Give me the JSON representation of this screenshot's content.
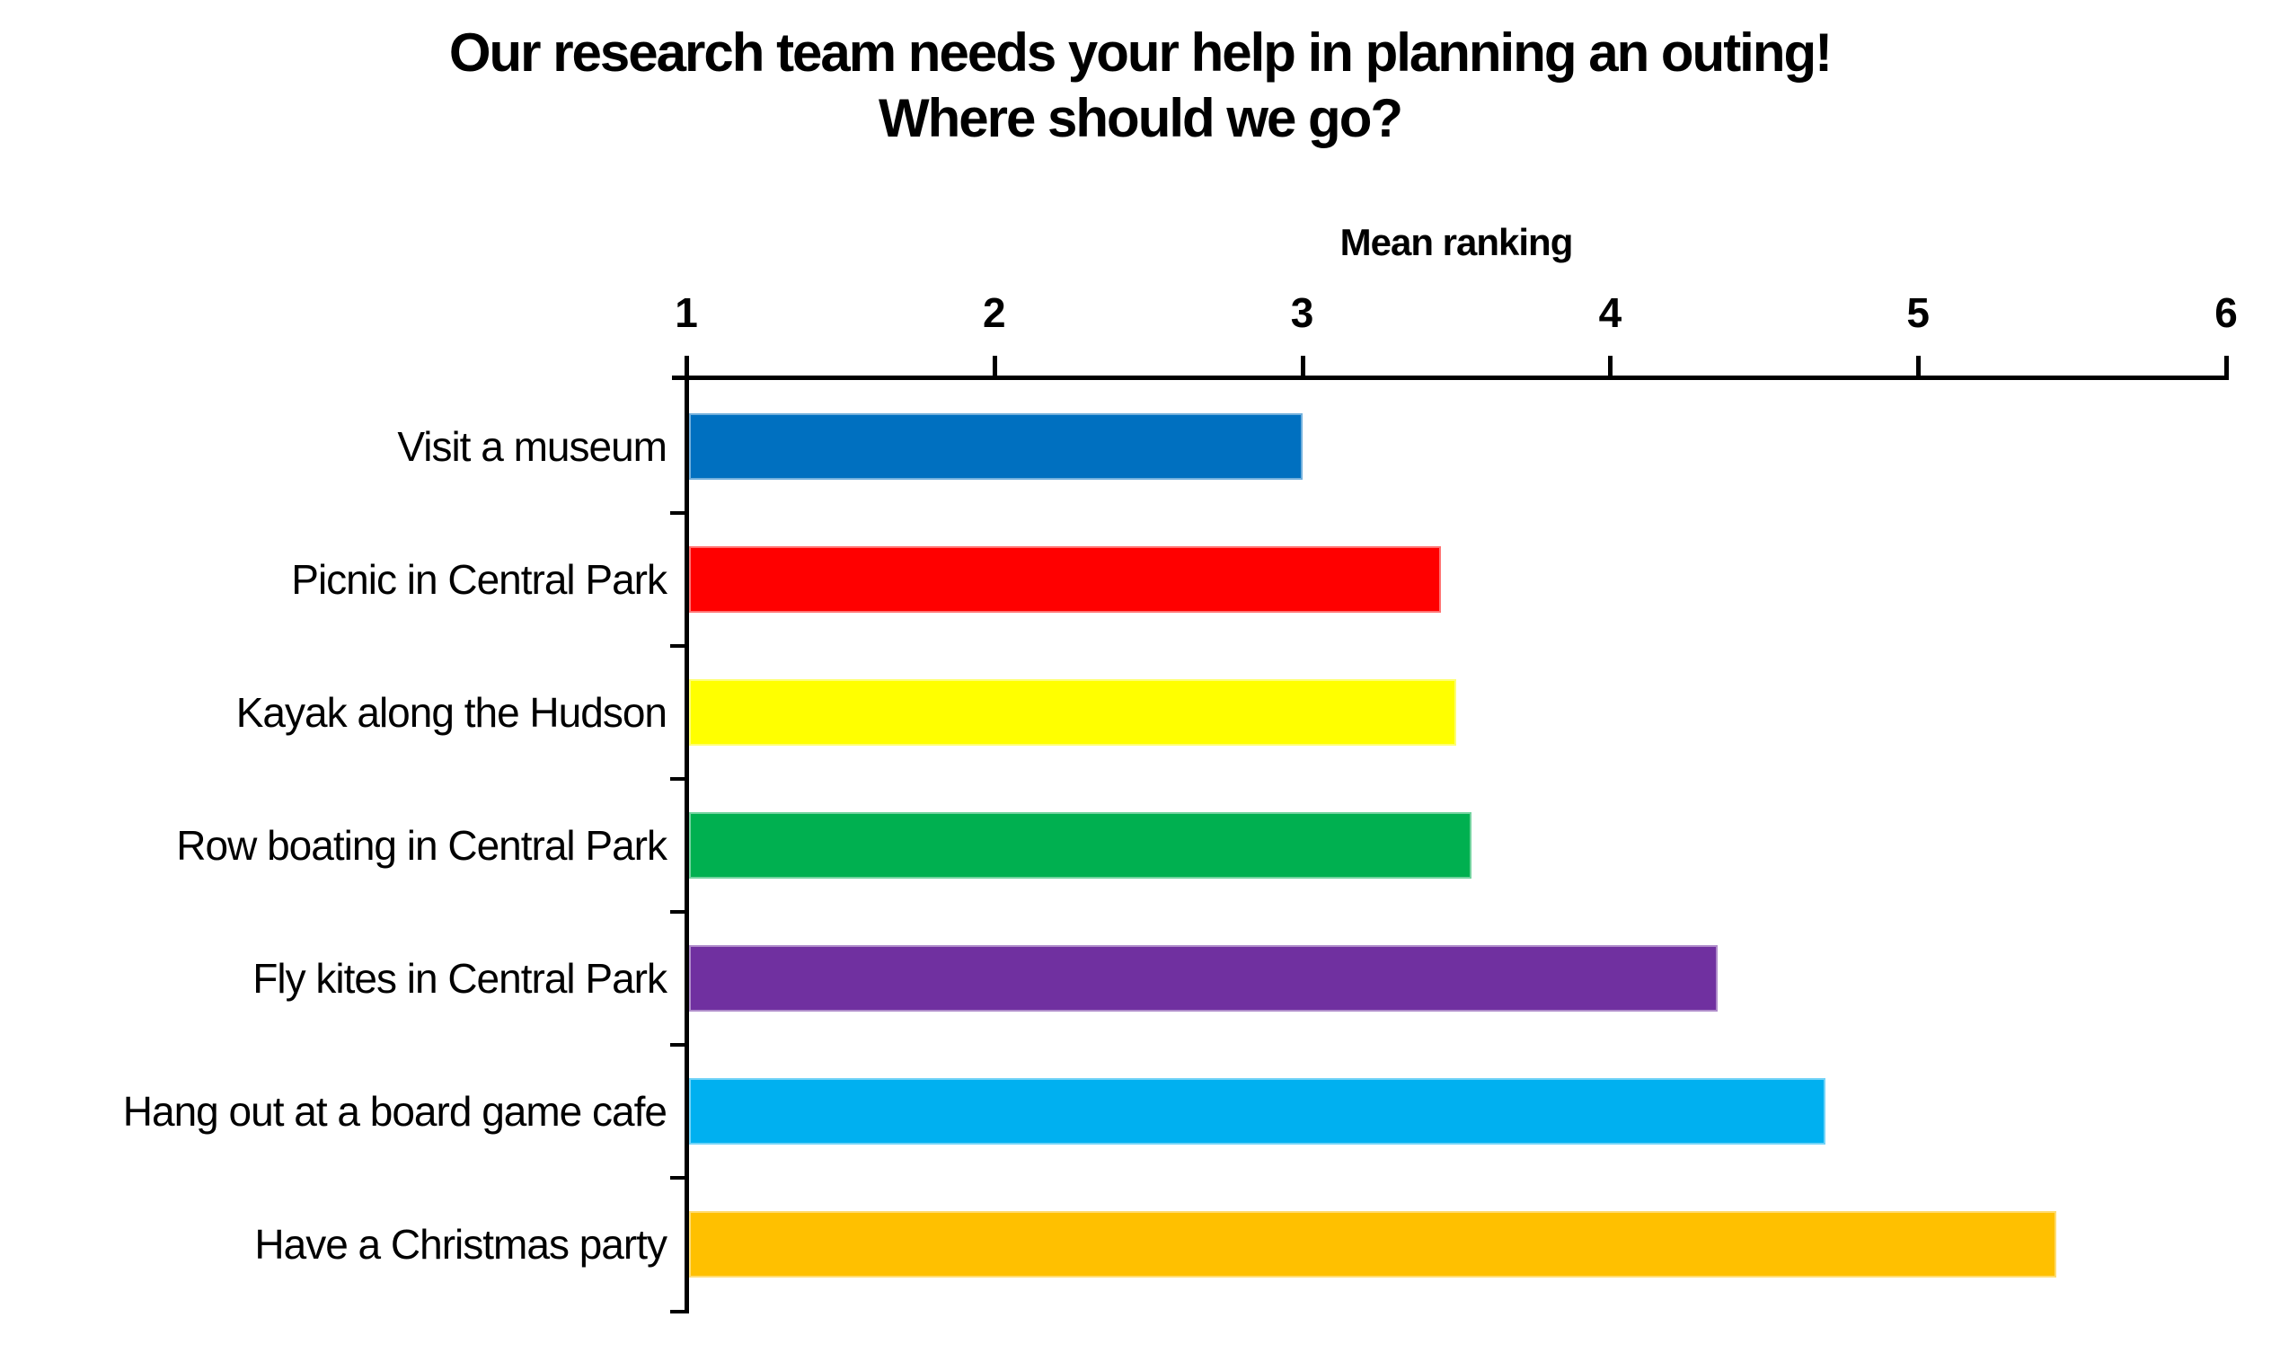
{
  "chart_data": {
    "type": "bar",
    "orientation": "horizontal",
    "title": "Our research team needs your help in planning an outing! Where should we go?",
    "xlabel": "Mean ranking",
    "ylabel": "",
    "categories": [
      "Visit a museum",
      "Picnic in Central Park",
      "Kayak along the Hudson",
      "Row boating in Central Park",
      "Fly kites in Central Park",
      "Hang out at a board game cafe",
      "Have a Christmas party"
    ],
    "values": [
      3.0,
      3.45,
      3.5,
      3.55,
      4.35,
      4.7,
      5.45
    ],
    "bar_colors": [
      "#0070C0",
      "#FF0000",
      "#FFFF00",
      "#00B050",
      "#7030A0",
      "#00B0F0",
      "#FFC000"
    ],
    "xlim": [
      1,
      6
    ],
    "xticks": [
      1,
      2,
      3,
      4,
      5,
      6
    ],
    "grid": "off",
    "legend": "none",
    "axis_color": "#000000",
    "text_color": "#000000",
    "background": "#FFFFFF"
  }
}
